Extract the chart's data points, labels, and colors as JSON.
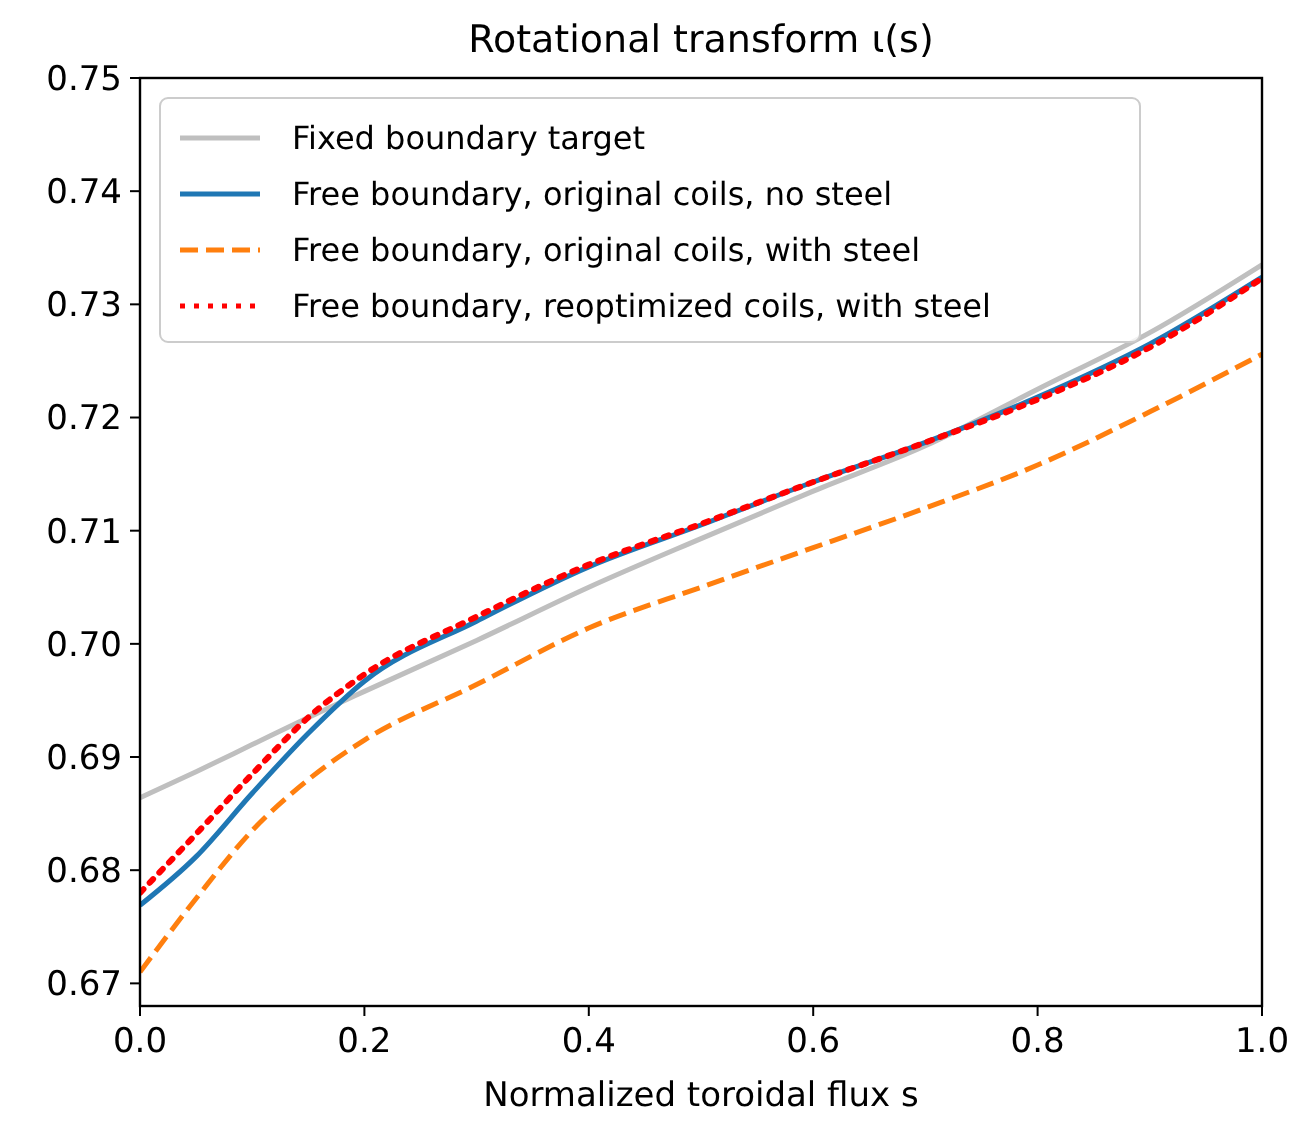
{
  "chart_data": {
    "type": "line",
    "title": "Rotational transform ι(s)",
    "xlabel": "Normalized toroidal flux s",
    "x": [
      0,
      0.05,
      0.1,
      0.15,
      0.2,
      0.3,
      0.4,
      0.5,
      0.6,
      0.7,
      0.8,
      0.9,
      1.0
    ],
    "series": [
      {
        "name": "Fixed boundary target",
        "color": "#bfbfbf",
        "line_style": "solid",
        "values": [
          0.6864,
          0.6887,
          0.6911,
          0.6935,
          0.6958,
          0.7003,
          0.705,
          0.7093,
          0.7135,
          0.7175,
          0.7225,
          0.7275,
          0.7335
        ]
      },
      {
        "name": "Free boundary, original coils, no steel",
        "color": "#1f77b4",
        "line_style": "solid",
        "values": [
          0.6769,
          0.6812,
          0.6868,
          0.6921,
          0.6967,
          0.702,
          0.7068,
          0.7105,
          0.7143,
          0.7178,
          0.7218,
          0.7265,
          0.7324
        ]
      },
      {
        "name": "Free boundary, original coils, with steel",
        "color": "#ff7f0e",
        "line_style": "dashed",
        "values": [
          0.671,
          0.6775,
          0.6835,
          0.688,
          0.6915,
          0.6964,
          0.7014,
          0.705,
          0.7085,
          0.712,
          0.7158,
          0.7205,
          0.7256
        ]
      },
      {
        "name": "Free boundary, reoptimized coils, with steel",
        "color": "#ff0000",
        "line_style": "dotted",
        "values": [
          0.678,
          0.6832,
          0.6885,
          0.6935,
          0.6973,
          0.7024,
          0.707,
          0.7106,
          0.7143,
          0.7178,
          0.7216,
          0.7262,
          0.7323
        ]
      }
    ],
    "xlim": [
      0,
      1
    ],
    "xticks": [
      {
        "value": 0,
        "label": "0.0"
      },
      0.2,
      0.4,
      0.6,
      0.8,
      {
        "value": 1,
        "label": "1.0"
      }
    ],
    "ylim": [
      0.668,
      0.75
    ],
    "yticks": [
      0.67,
      0.68,
      0.69,
      {
        "value": 0.7,
        "label": "0.70"
      },
      0.71,
      0.72,
      0.73,
      0.74,
      0.75
    ],
    "grid": false,
    "legend": "top left",
    "marker": "none"
  }
}
